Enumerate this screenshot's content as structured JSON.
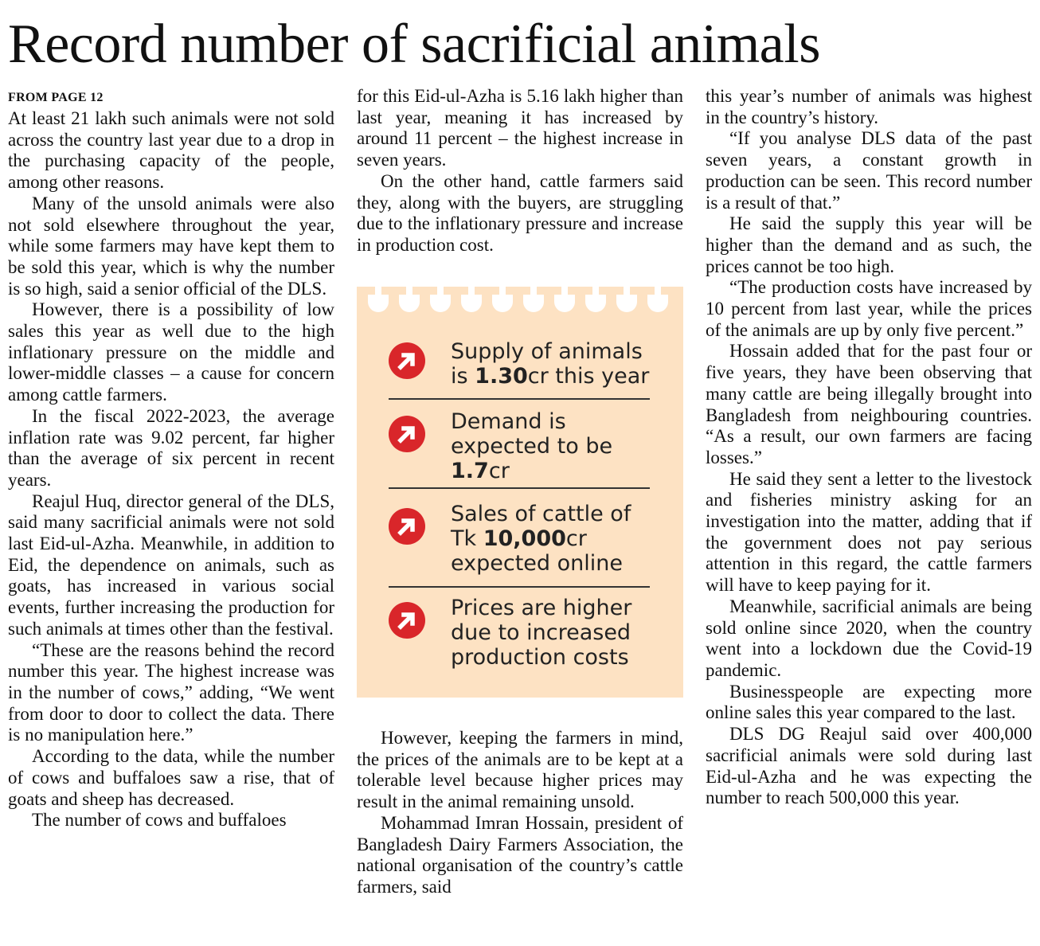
{
  "headline": "Record number of sacrificial animals",
  "kicker": "FROM PAGE 12",
  "col1": [
    "At least 21 lakh such animals were not sold across the country last year due to a drop in the purchasing capacity of the people, among other reasons.",
    "Many of the unsold animals were also not sold elsewhere throughout the year, while some farmers may have kept them to be sold this year, which is why the number is so high, said a senior official of the DLS.",
    "However, there is a possibility of low sales this year as well due to the high inflationary pressure on the middle and lower-middle classes – a cause for concern among cattle farmers.",
    "In the fiscal 2022-2023, the average inflation rate was 9.02 percent, far higher than the average of six percent in recent years.",
    "Reajul Huq, director general of the DLS, said many sacrificial animals were not sold last Eid-ul-Azha. Meanwhile, in addition to Eid, the dependence on animals, such as goats, has increased in various social events, further increasing the production for such animals at times other than the festival.",
    "“These are the reasons behind the record number this year. The highest increase was in the number of cows,” adding, “We went from door to door to collect the data. There is no manipulation here.”",
    "According to the data, while the number of cows and buffaloes saw a rise, that of goats and sheep has decreased.",
    "The number of cows and buffaloes"
  ],
  "col2_top": [
    "for this Eid-ul-Azha is 5.16 lakh higher than last year, meaning it has increased by around 11 percent – the highest increase in seven years.",
    "On the other hand, cattle farmers said they, along with the buyers, are struggling due to the inflationary pressure and increase in production cost."
  ],
  "col2_bottom": [
    "However, keeping the farmers in mind, the prices of the animals are to be kept at a tolerable level because higher prices may result in the animal remaining unsold.",
    "Mohammad Imran Hossain, president of Bangladesh Dairy Farmers Association, the national organisation of the country’s cattle farmers, said"
  ],
  "col3": [
    "this year’s number of animals was highest in the country’s history.",
    "“If you analyse DLS data of the past seven years, a constant growth in production can be seen. This record number is a result of that.”",
    "He said the supply this year will be higher than the demand and as such, the prices cannot be too high.",
    "“The production costs have increased by 10 percent from last year, while the prices of the animals are up by only five percent.”",
    "Hossain added that for the past four or five years, they have been observing that many cattle are being illegally brought into Bangladesh from neighbouring countries. “As a result, our own farmers are facing losses.”",
    "He said they sent a letter to the livestock and fisheries ministry asking for an investigation into the matter, adding that if the government does not pay serious attention in this regard, the cattle farmers will have to keep paying for it.",
    "Meanwhile, sacrificial animals are being sold online since 2020, when the country went into a lockdown due the Covid-19 pandemic.",
    "Businesspeople are expecting more online sales this year compared to the last.",
    "DLS DG Reajul said over 400,000 sacrificial animals were sold during last Eid-ul-Azha and he was expecting the number to reach 500,000 this year."
  ],
  "infobox": {
    "colors": {
      "background": "#fde2c3",
      "arrow": "#d9262a"
    },
    "icon": "arrow-circle-icon",
    "facts": [
      {
        "pre": "Supply of animals is ",
        "bold": "1.30",
        "post": "cr this year"
      },
      {
        "pre": "Demand is expected to be ",
        "bold": "1.7",
        "post": "cr"
      },
      {
        "pre": "Sales of cattle of Tk ",
        "bold": "10,000",
        "post": "cr expected online"
      },
      {
        "pre": "Prices are higher due to increased production costs",
        "bold": "",
        "post": ""
      }
    ]
  }
}
